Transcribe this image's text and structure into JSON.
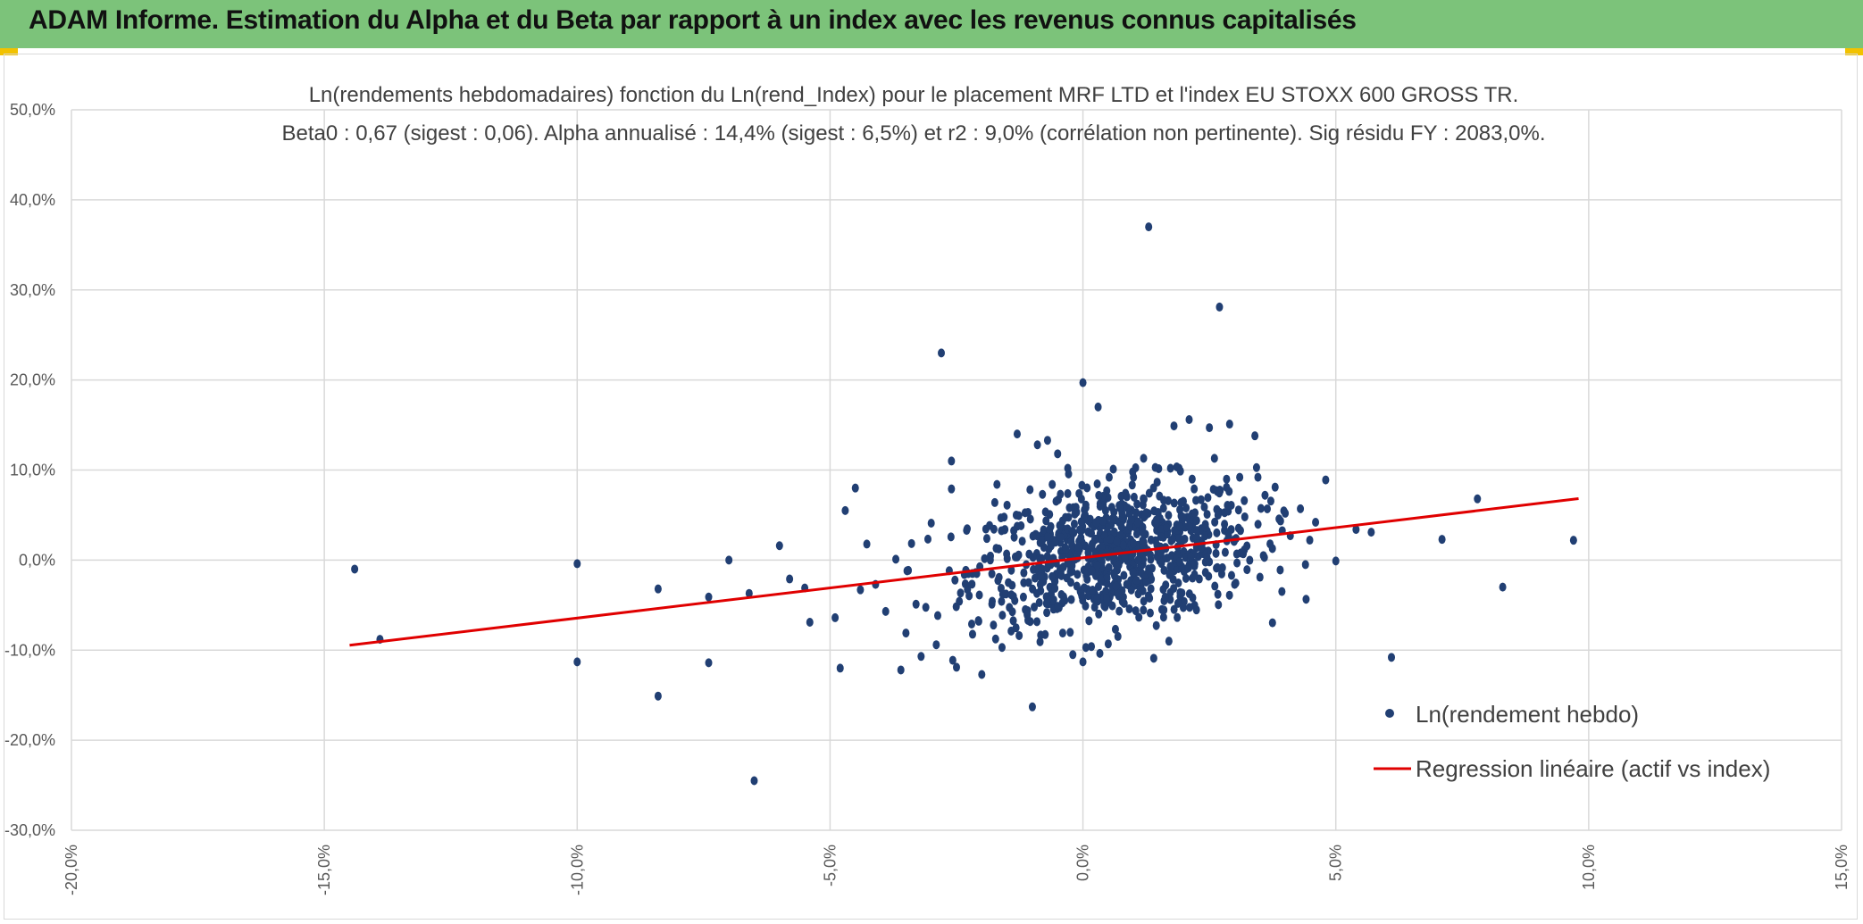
{
  "header": {
    "title": "ADAM Informe. Estimation du Alpha et du Beta par rapport à un index avec les revenus connus capitalisés"
  },
  "colors": {
    "header_bg": "#7cc37a",
    "points": "#213f73",
    "regression": "#e00000",
    "grid": "#d9d9d9"
  },
  "chart_data": {
    "type": "scatter",
    "title_line1": "Ln(rendements hebdomadaires) fonction du Ln(rend_Index) pour le placement MRF LTD et l'index EU STOXX 600 GROSS TR.",
    "title_line2": "Beta0 : 0,67 (sigest : 0,06). Alpha annualisé : 14,4% (sigest : 6,5%) et r2 : 9,0% (corrélation non pertinente). Sig résidu FY : 2083,0%.",
    "xlim": [
      -0.2,
      0.15
    ],
    "ylim": [
      -0.3,
      0.5
    ],
    "x_ticks": [
      -0.2,
      -0.15,
      -0.1,
      -0.05,
      0.0,
      0.05,
      0.1,
      0.15
    ],
    "x_tick_labels": [
      "-20,0%",
      "-15,0%",
      "-10,0%",
      "-5,0%",
      "0,0%",
      "5,0%",
      "10,0%",
      "15,0%"
    ],
    "y_ticks": [
      -0.3,
      -0.2,
      -0.1,
      0.0,
      0.1,
      0.2,
      0.3,
      0.4,
      0.5
    ],
    "y_tick_labels": [
      "-30,0%",
      "-20,0%",
      "-10,0%",
      "0,0%",
      "10,0%",
      "20,0%",
      "30,0%",
      "40,0%",
      "50,0%"
    ],
    "grid": true,
    "beta": 0.67,
    "alpha_weekly": 0.0026,
    "regression_x_range": [
      -0.145,
      0.098
    ],
    "legend": [
      {
        "label": "Ln(rendement hebdo)",
        "kind": "marker"
      },
      {
        "label": "Regression linéaire (actif vs index)",
        "kind": "line"
      }
    ],
    "legend_position": "bottom-right",
    "series": [
      {
        "name": "Ln(rendement hebdo)",
        "points": [
          [
            -0.144,
            -0.01
          ],
          [
            -0.139,
            -0.088
          ],
          [
            -0.1,
            -0.004
          ],
          [
            -0.1,
            -0.113
          ],
          [
            -0.084,
            -0.032
          ],
          [
            -0.084,
            -0.151
          ],
          [
            -0.074,
            -0.041
          ],
          [
            -0.074,
            -0.114
          ],
          [
            -0.07,
            0.0
          ],
          [
            -0.066,
            -0.037
          ],
          [
            -0.065,
            -0.245
          ],
          [
            -0.06,
            0.016
          ],
          [
            -0.058,
            -0.021
          ],
          [
            -0.055,
            -0.031
          ],
          [
            -0.054,
            -0.069
          ],
          [
            -0.049,
            -0.064
          ],
          [
            -0.048,
            -0.12
          ],
          [
            -0.047,
            0.055
          ],
          [
            -0.045,
            0.08
          ],
          [
            -0.044,
            -0.033
          ],
          [
            -0.041,
            -0.027
          ],
          [
            -0.039,
            -0.057
          ],
          [
            -0.037,
            0.001
          ],
          [
            -0.036,
            -0.122
          ],
          [
            -0.035,
            -0.081
          ],
          [
            -0.033,
            -0.049
          ],
          [
            -0.032,
            -0.107
          ],
          [
            -0.03,
            0.041
          ],
          [
            -0.029,
            -0.094
          ],
          [
            -0.028,
            0.23
          ],
          [
            -0.026,
            0.11
          ],
          [
            -0.026,
            0.079
          ],
          [
            -0.025,
            -0.119
          ],
          [
            -0.023,
            0.033
          ],
          [
            -0.022,
            -0.071
          ],
          [
            -0.021,
            -0.015
          ],
          [
            -0.02,
            -0.127
          ],
          [
            -0.019,
            0.024
          ],
          [
            -0.018,
            -0.049
          ],
          [
            -0.017,
            0.084
          ],
          [
            -0.016,
            -0.097
          ],
          [
            -0.015,
            0.061
          ],
          [
            -0.014,
            -0.028
          ],
          [
            -0.013,
            0.14
          ],
          [
            -0.012,
            0.021
          ],
          [
            -0.011,
            -0.061
          ],
          [
            -0.01,
            -0.163
          ],
          [
            -0.009,
            0.128
          ],
          [
            -0.008,
            0.073
          ],
          [
            -0.007,
            0.133
          ],
          [
            -0.006,
            -0.046
          ],
          [
            -0.005,
            0.118
          ],
          [
            -0.004,
            -0.081
          ],
          [
            -0.003,
            0.102
          ],
          [
            -0.002,
            -0.105
          ],
          [
            0.0,
            0.197
          ],
          [
            0.0,
            -0.113
          ],
          [
            0.003,
            0.17
          ],
          [
            0.004,
            0.061
          ],
          [
            0.005,
            -0.093
          ],
          [
            0.006,
            0.101
          ],
          [
            0.008,
            -0.041
          ],
          [
            0.01,
            0.092
          ],
          [
            0.012,
            0.113
          ],
          [
            0.013,
            0.37
          ],
          [
            0.014,
            -0.109
          ],
          [
            0.016,
            0.04
          ],
          [
            0.017,
            -0.09
          ],
          [
            0.018,
            0.149
          ],
          [
            0.019,
            0.102
          ],
          [
            0.02,
            -0.046
          ],
          [
            0.021,
            0.156
          ],
          [
            0.022,
            0.079
          ],
          [
            0.023,
            -0.021
          ],
          [
            0.024,
            0.059
          ],
          [
            0.025,
            0.147
          ],
          [
            0.026,
            0.113
          ],
          [
            0.027,
            0.281
          ],
          [
            0.028,
            0.033
          ],
          [
            0.029,
            0.151
          ],
          [
            0.03,
            -0.027
          ],
          [
            0.031,
            0.092
          ],
          [
            0.032,
            0.048
          ],
          [
            0.034,
            0.138
          ],
          [
            0.035,
            -0.019
          ],
          [
            0.036,
            0.072
          ],
          [
            0.037,
            0.018
          ],
          [
            0.038,
            0.081
          ],
          [
            0.039,
            -0.011
          ],
          [
            0.04,
            0.052
          ],
          [
            0.041,
            0.027
          ],
          [
            0.043,
            0.057
          ],
          [
            0.044,
            -0.005
          ],
          [
            0.046,
            0.042
          ],
          [
            0.048,
            0.089
          ],
          [
            0.05,
            -0.001
          ],
          [
            0.054,
            0.034
          ],
          [
            0.057,
            0.031
          ],
          [
            0.061,
            -0.108
          ],
          [
            0.071,
            0.023
          ],
          [
            0.078,
            0.068
          ],
          [
            0.083,
            -0.03
          ],
          [
            0.097,
            0.022
          ]
        ]
      }
    ]
  }
}
